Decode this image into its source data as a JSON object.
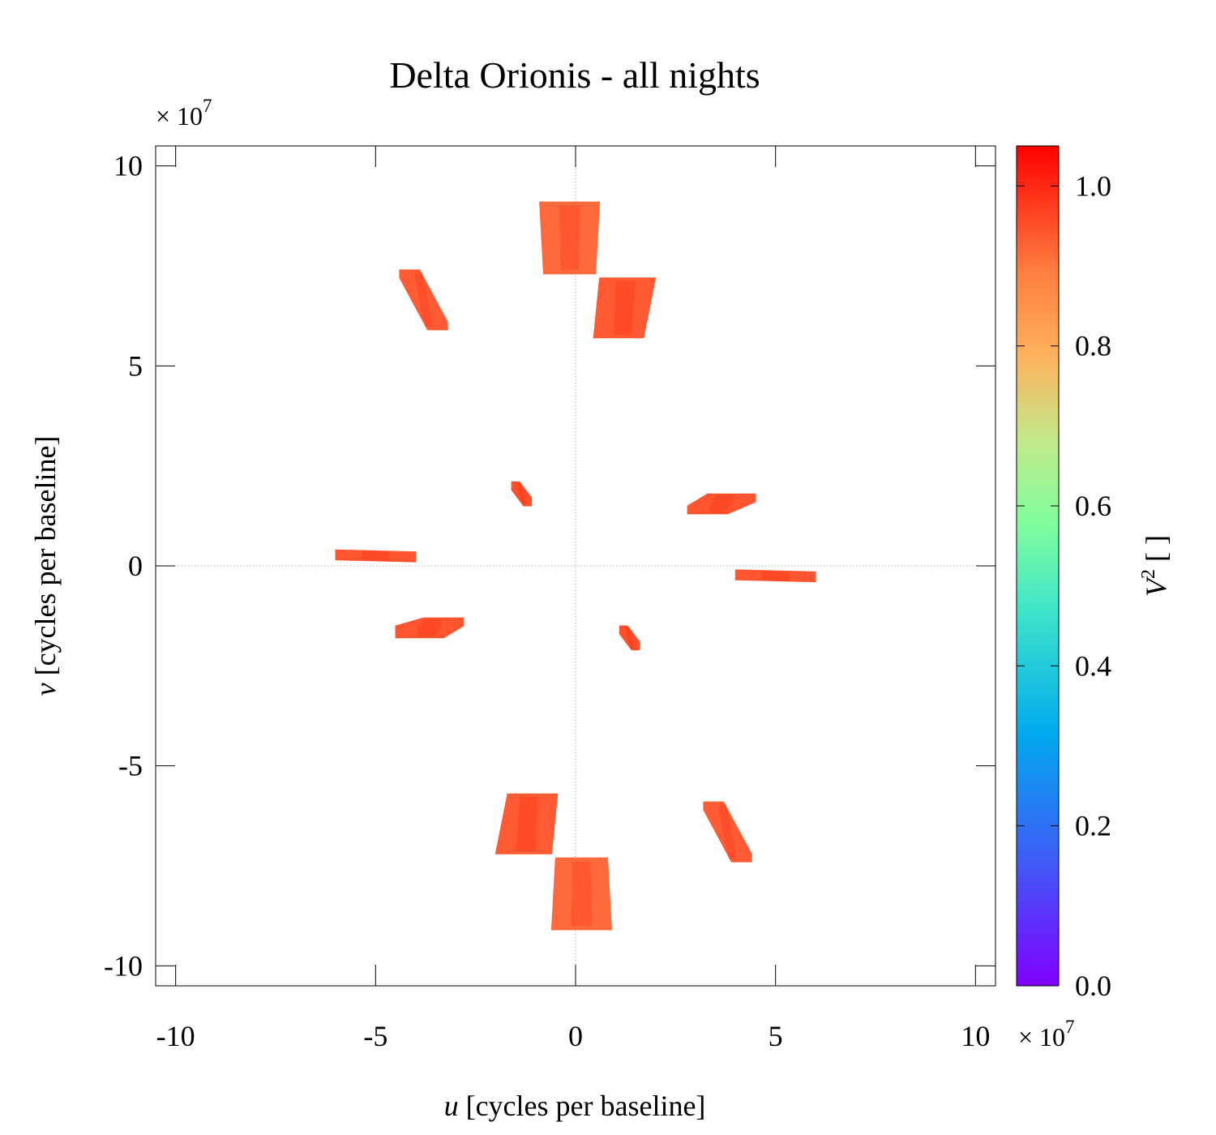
{
  "chart_data": {
    "type": "scatter",
    "title": "Delta Orionis - all nights",
    "xlabel_var": "u",
    "xlabel_rest": " [cycles per baseline]",
    "ylabel_var": "v",
    "ylabel_rest": " [cycles per baseline]",
    "x_multiplier": "× 10",
    "y_multiplier": "× 10",
    "multiplier_exponent": "7",
    "xlim": [
      -10.5,
      10.5
    ],
    "ylim": [
      -10.5,
      10.5
    ],
    "xticks": [
      -10,
      -5,
      0,
      5,
      10
    ],
    "yticks": [
      -10,
      -5,
      0,
      5,
      10
    ],
    "colorbar": {
      "label_var": "V",
      "label_sup": "2",
      "label_rest": " [ ]",
      "range": [
        0.0,
        1.05
      ],
      "ticks": [
        "0.0",
        "0.2",
        "0.4",
        "0.6",
        "0.8",
        "1.0"
      ],
      "tick_values": [
        0.0,
        0.2,
        0.4,
        0.6,
        0.8,
        1.0
      ]
    },
    "series": [
      {
        "color": "#ff6a3d",
        "stripe": "#ff4d2a",
        "points": [
          [
            -0.9,
            9.1
          ],
          [
            0.6,
            9.1
          ],
          [
            0.5,
            7.3
          ],
          [
            -0.8,
            7.3
          ]
        ]
      },
      {
        "color": "#ff5a33",
        "stripe": "#ff4020",
        "points": [
          [
            0.6,
            7.2
          ],
          [
            2.0,
            7.2
          ],
          [
            1.7,
            5.7
          ],
          [
            0.45,
            5.7
          ]
        ]
      },
      {
        "color": "#ff5c35",
        "stripe": "#ff4525",
        "points": [
          [
            -4.4,
            7.4
          ],
          [
            -3.9,
            7.4
          ],
          [
            -3.2,
            6.1
          ],
          [
            -3.2,
            5.9
          ],
          [
            -3.7,
            5.9
          ],
          [
            -4.4,
            7.2
          ]
        ]
      },
      {
        "color": "#ff4f2c",
        "stripe": "#ff3a1c",
        "points": [
          [
            -1.6,
            2.1
          ],
          [
            -1.4,
            2.1
          ],
          [
            -1.1,
            1.7
          ],
          [
            -1.1,
            1.5
          ],
          [
            -1.3,
            1.5
          ],
          [
            -1.6,
            1.9
          ]
        ]
      },
      {
        "color": "#ff5530",
        "stripe": "#ff4020",
        "points": [
          [
            2.8,
            1.5
          ],
          [
            3.3,
            1.8
          ],
          [
            4.5,
            1.8
          ],
          [
            4.5,
            1.6
          ],
          [
            3.8,
            1.3
          ],
          [
            2.8,
            1.3
          ]
        ]
      },
      {
        "color": "#ff5530",
        "stripe": "#ff4020",
        "points": [
          [
            -6.0,
            0.4
          ],
          [
            -4.0,
            0.35
          ],
          [
            -4.0,
            0.1
          ],
          [
            -6.0,
            0.15
          ]
        ]
      },
      {
        "color": "#ff5530",
        "stripe": "#ff4020",
        "points": [
          [
            4.0,
            -0.1
          ],
          [
            6.0,
            -0.15
          ],
          [
            6.0,
            -0.4
          ],
          [
            4.0,
            -0.35
          ]
        ]
      },
      {
        "color": "#ff5530",
        "stripe": "#ff4020",
        "points": [
          [
            -4.5,
            -1.5
          ],
          [
            -3.8,
            -1.3
          ],
          [
            -2.8,
            -1.3
          ],
          [
            -2.8,
            -1.5
          ],
          [
            -3.3,
            -1.8
          ],
          [
            -4.5,
            -1.8
          ]
        ]
      },
      {
        "color": "#ff4f2c",
        "stripe": "#ff3a1c",
        "points": [
          [
            1.1,
            -1.5
          ],
          [
            1.3,
            -1.5
          ],
          [
            1.6,
            -1.9
          ],
          [
            1.6,
            -2.1
          ],
          [
            1.4,
            -2.1
          ],
          [
            1.1,
            -1.7
          ]
        ]
      },
      {
        "color": "#ff5c35",
        "stripe": "#ff4525",
        "points": [
          [
            3.2,
            -5.9
          ],
          [
            3.7,
            -5.9
          ],
          [
            4.4,
            -7.2
          ],
          [
            4.4,
            -7.4
          ],
          [
            3.9,
            -7.4
          ],
          [
            3.2,
            -6.1
          ]
        ]
      },
      {
        "color": "#ff5a33",
        "stripe": "#ff4020",
        "points": [
          [
            -1.7,
            -5.7
          ],
          [
            -0.45,
            -5.7
          ],
          [
            -0.6,
            -7.2
          ],
          [
            -2.0,
            -7.2
          ]
        ]
      },
      {
        "color": "#ff6a3d",
        "stripe": "#ff4d2a",
        "points": [
          [
            -0.5,
            -7.3
          ],
          [
            0.8,
            -7.3
          ],
          [
            0.9,
            -9.1
          ],
          [
            -0.6,
            -9.1
          ]
        ]
      }
    ]
  }
}
